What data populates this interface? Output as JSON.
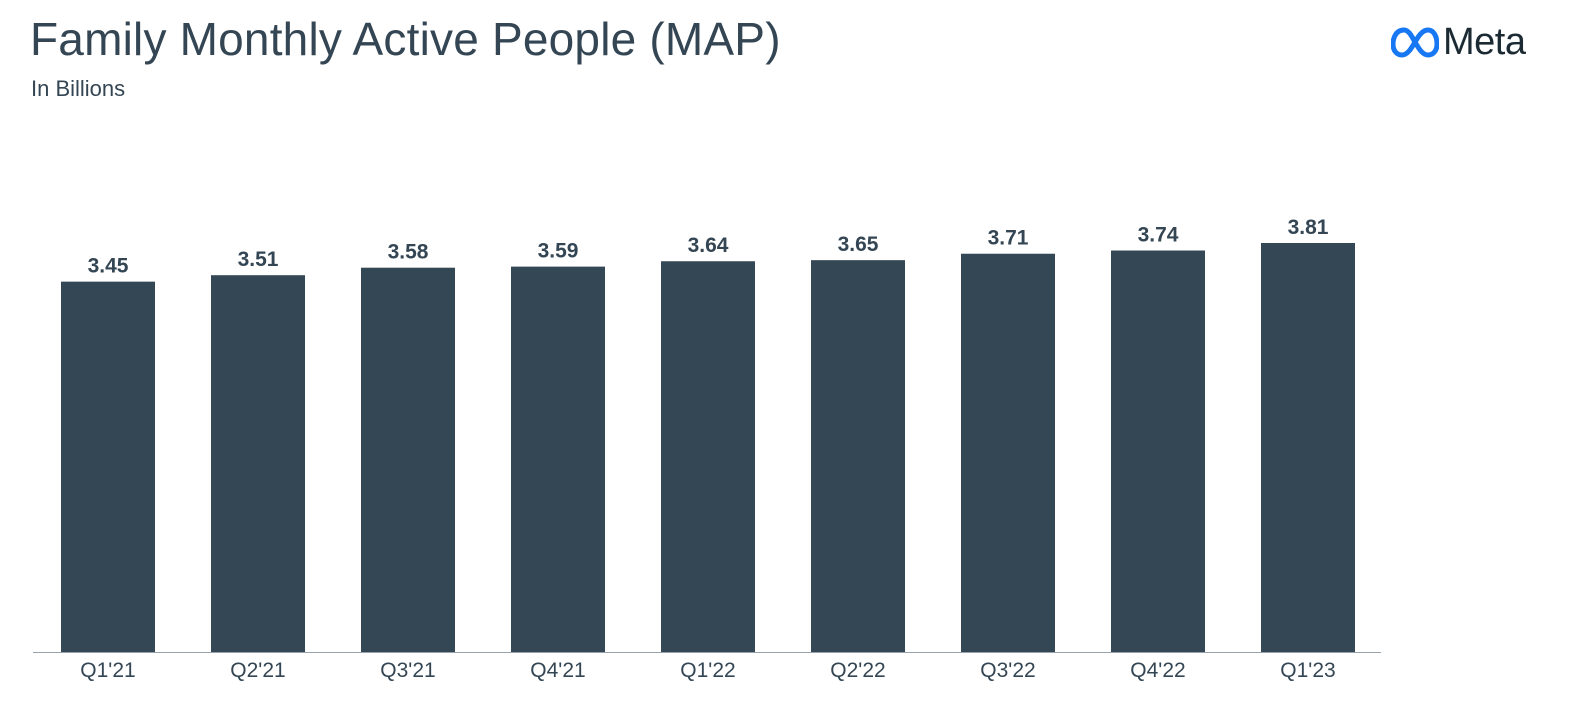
{
  "header": {
    "title": "Family Monthly Active People (MAP)",
    "subtitle": "In Billions"
  },
  "brand": {
    "logo_text": "Meta",
    "logo_color": "#1877F2"
  },
  "colors": {
    "bar": "#344754",
    "text": "#344654",
    "axis": "#9aa3aa"
  },
  "chart_data": {
    "type": "bar",
    "title": "Family Monthly Active People (MAP)",
    "subtitle": "In Billions",
    "categories": [
      "Q1'21",
      "Q2'21",
      "Q3'21",
      "Q4'21",
      "Q1'22",
      "Q2'22",
      "Q3'22",
      "Q4'22",
      "Q1'23"
    ],
    "values": [
      3.45,
      3.51,
      3.58,
      3.59,
      3.64,
      3.65,
      3.71,
      3.74,
      3.81
    ],
    "value_labels": [
      "3.45",
      "3.51",
      "3.58",
      "3.59",
      "3.64",
      "3.65",
      "3.71",
      "3.74",
      "3.81"
    ],
    "xlabel": "",
    "ylabel": "",
    "ylim": [
      0,
      3.81
    ],
    "grid": false,
    "legend": "none",
    "data_labels": true
  }
}
